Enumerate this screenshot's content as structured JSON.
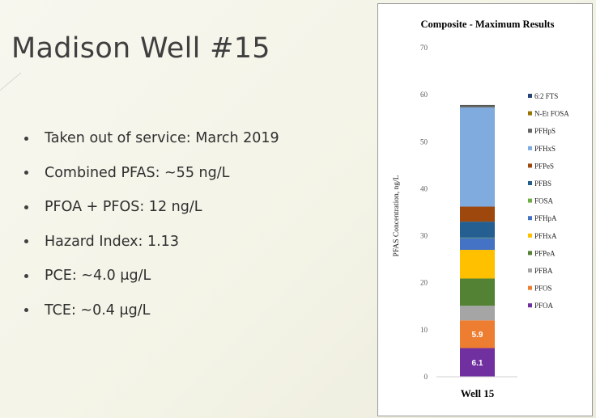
{
  "slide": {
    "title": "Madison Well #15",
    "bullets": [
      "Taken out of service:  March 2019",
      "Combined PFAS:  ~55 ng/L",
      "PFOA + PFOS:  12 ng/L",
      "Hazard Index:  1.13",
      "PCE:  ~4.0 μg/L",
      "TCE:  ~0.4 μg/L"
    ]
  },
  "chart_data": {
    "type": "bar",
    "stacked": true,
    "title": "Composite - Maximum Results",
    "ylabel": "PFAS Concentration, ng/L",
    "xlabel": "",
    "categories": [
      "Well 15"
    ],
    "ylim": [
      0,
      70
    ],
    "yticks": [
      0,
      10,
      20,
      30,
      40,
      50,
      60,
      70
    ],
    "grid": false,
    "legend_position": "right",
    "series": [
      {
        "name": "PFOA",
        "values": [
          6.1
        ],
        "color": "#7030a0",
        "label": "6.1"
      },
      {
        "name": "PFOS",
        "values": [
          5.9
        ],
        "color": "#ed7d31",
        "label": "5.9"
      },
      {
        "name": "PFBA",
        "values": [
          3.1
        ],
        "color": "#a5a5a5"
      },
      {
        "name": "PFPeA",
        "values": [
          5.8
        ],
        "color": "#548235"
      },
      {
        "name": "PFHxA",
        "values": [
          6.1
        ],
        "color": "#ffc000"
      },
      {
        "name": "PFHpA",
        "values": [
          2.5
        ],
        "color": "#4472c4"
      },
      {
        "name": "FOSA",
        "values": [
          0.1
        ],
        "color": "#70ad47"
      },
      {
        "name": "PFBS",
        "values": [
          3.4
        ],
        "color": "#255e91"
      },
      {
        "name": "PFPeS",
        "values": [
          3.2
        ],
        "color": "#9e480e"
      },
      {
        "name": "PFHxS",
        "values": [
          21.1
        ],
        "color": "#7fabdf"
      },
      {
        "name": "PFHpS",
        "values": [
          0.4
        ],
        "color": "#636363"
      },
      {
        "name": "N-Et FOSA",
        "values": [
          0.05
        ],
        "color": "#997300"
      },
      {
        "name": "6:2 FTS",
        "values": [
          0.05
        ],
        "color": "#264478"
      }
    ]
  }
}
